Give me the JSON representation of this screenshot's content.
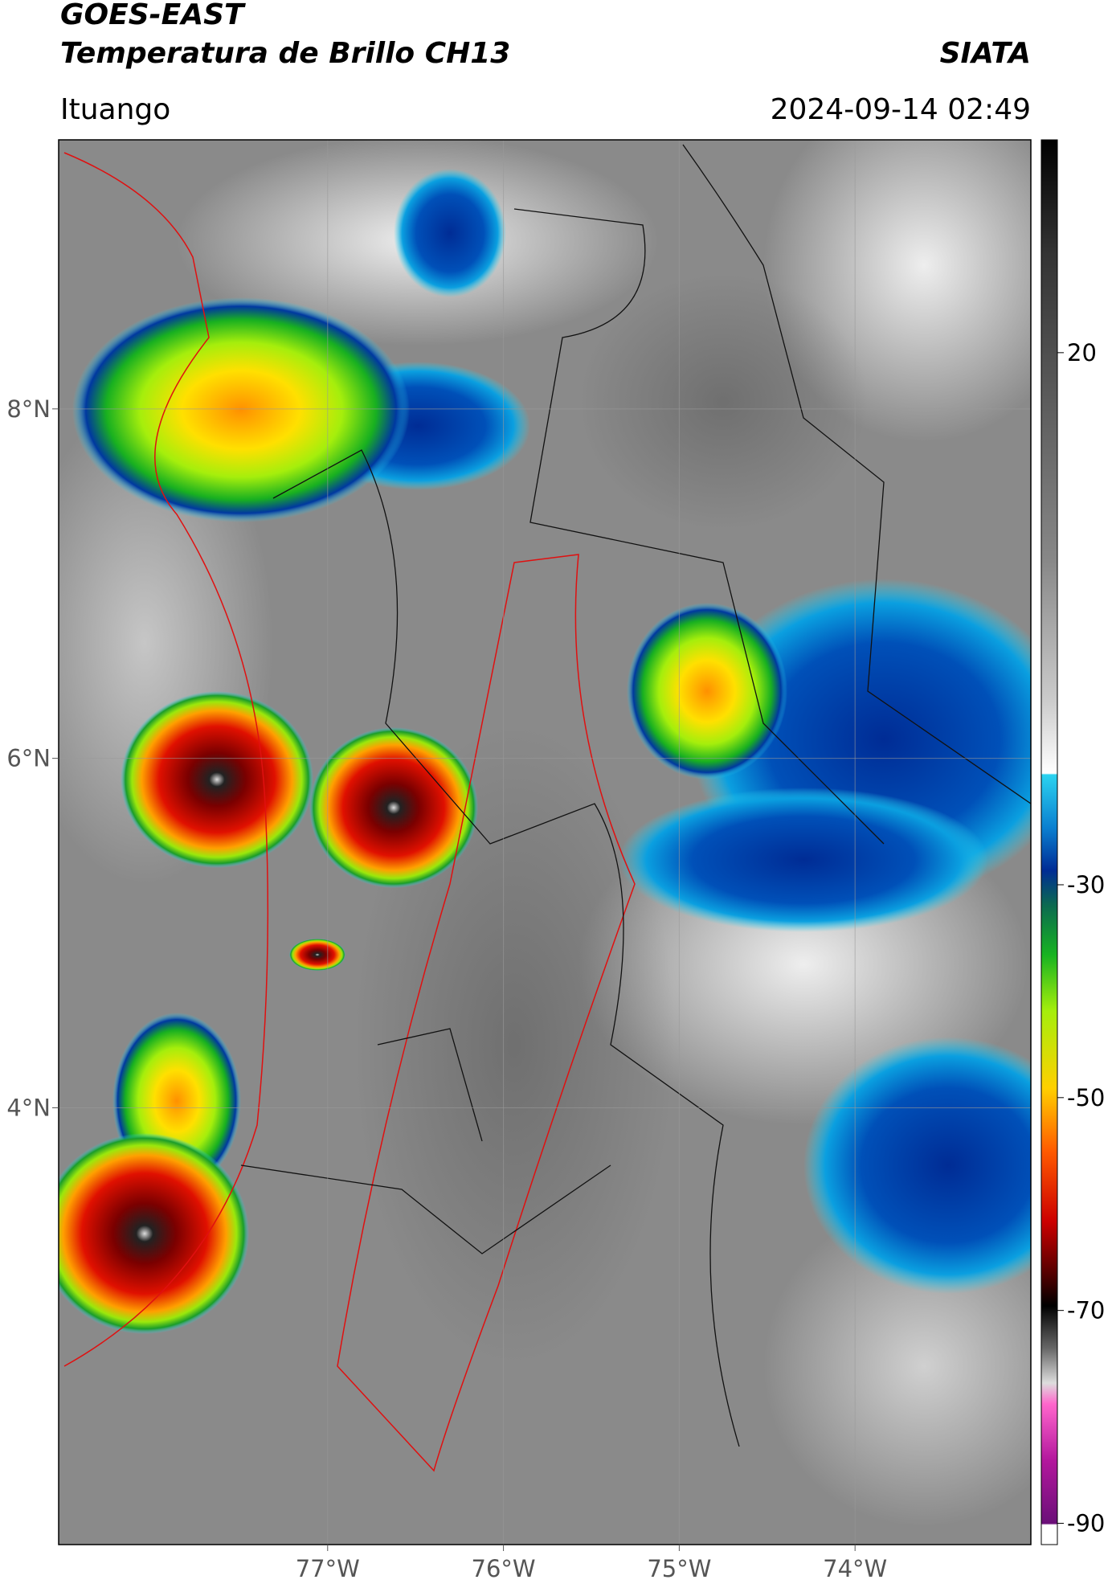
{
  "header": {
    "title": "GOES-EAST",
    "subtitle": "Temperatura de Brillo CH13",
    "source": "SIATA",
    "location": "Ituango",
    "datetime": "2024-09-14 02:49"
  },
  "map": {
    "xlim": [
      -78.53,
      -73.0
    ],
    "ylim": [
      1.5,
      9.54
    ],
    "grid": true,
    "xticks": [
      {
        "value": -77,
        "label": "77°W"
      },
      {
        "value": -76,
        "label": "76°W"
      },
      {
        "value": -75,
        "label": "75°W"
      },
      {
        "value": -74,
        "label": "74°W"
      }
    ],
    "yticks": [
      {
        "value": 8,
        "label": "8°N"
      },
      {
        "value": 6,
        "label": "6°N"
      },
      {
        "value": 4,
        "label": "4°N"
      }
    ]
  },
  "colorbar": {
    "lim": [
      -92,
      40
    ],
    "ticks": [
      20,
      -30,
      -50,
      -70,
      -90
    ]
  }
}
